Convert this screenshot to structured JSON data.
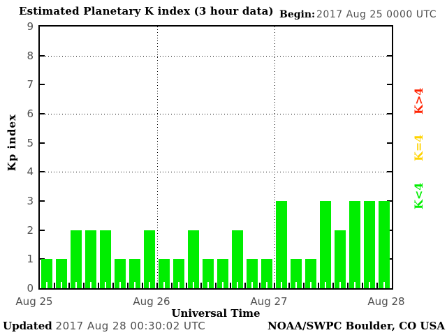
{
  "title": "Estimated Planetary K index (3 hour data)",
  "begin": {
    "label": "Begin:",
    "value": "2017 Aug 25 0000 UTC"
  },
  "footer": {
    "updated_label": "Updated",
    "updated_value": "2017 Aug 28 00:30:02 UTC",
    "source": "NOAA/SWPC Boulder, CO USA"
  },
  "colors": {
    "bar_green": "#00ee00",
    "legend_green": "#00ee00",
    "legend_yellow": "#ffd300",
    "legend_red": "#ff2200",
    "axis": "#000000",
    "muted_text": "#4f4f4f"
  },
  "chart_data": {
    "type": "bar",
    "title": "Estimated Planetary K index (3 hour data)",
    "xlabel": "Universal Time",
    "ylabel": "Kp index",
    "ylim": [
      0,
      9
    ],
    "y_ticks": [
      0,
      1,
      2,
      3,
      4,
      5,
      6,
      7,
      8,
      9
    ],
    "gridlines_y": [
      4,
      6,
      8
    ],
    "grid_style": "dotted",
    "interval_hours": 3,
    "begin": "2017 Aug 25 0000 UTC",
    "x_tick_labels": [
      "Aug 25",
      "Aug 26",
      "Aug 27",
      "Aug 28"
    ],
    "days": [
      {
        "date": "2017 Aug 25",
        "values": [
          1,
          1,
          2,
          2,
          2,
          1,
          1,
          2
        ]
      },
      {
        "date": "2017 Aug 26",
        "values": [
          1,
          1,
          2,
          1,
          1,
          2,
          1,
          1
        ]
      },
      {
        "date": "2017 Aug 27",
        "values": [
          3,
          1,
          1,
          3,
          2,
          3,
          3,
          3
        ]
      }
    ],
    "values": [
      1,
      1,
      2,
      2,
      2,
      1,
      1,
      2,
      1,
      1,
      2,
      1,
      1,
      2,
      1,
      1,
      3,
      1,
      1,
      3,
      2,
      3,
      3,
      3
    ],
    "bar_color": "#00ee00",
    "legend_position": "right",
    "legend": [
      {
        "label": "K<4",
        "color": "#00ee00"
      },
      {
        "label": "K=4",
        "color": "#ffd300"
      },
      {
        "label": "K>4",
        "color": "#ff2200"
      }
    ]
  }
}
